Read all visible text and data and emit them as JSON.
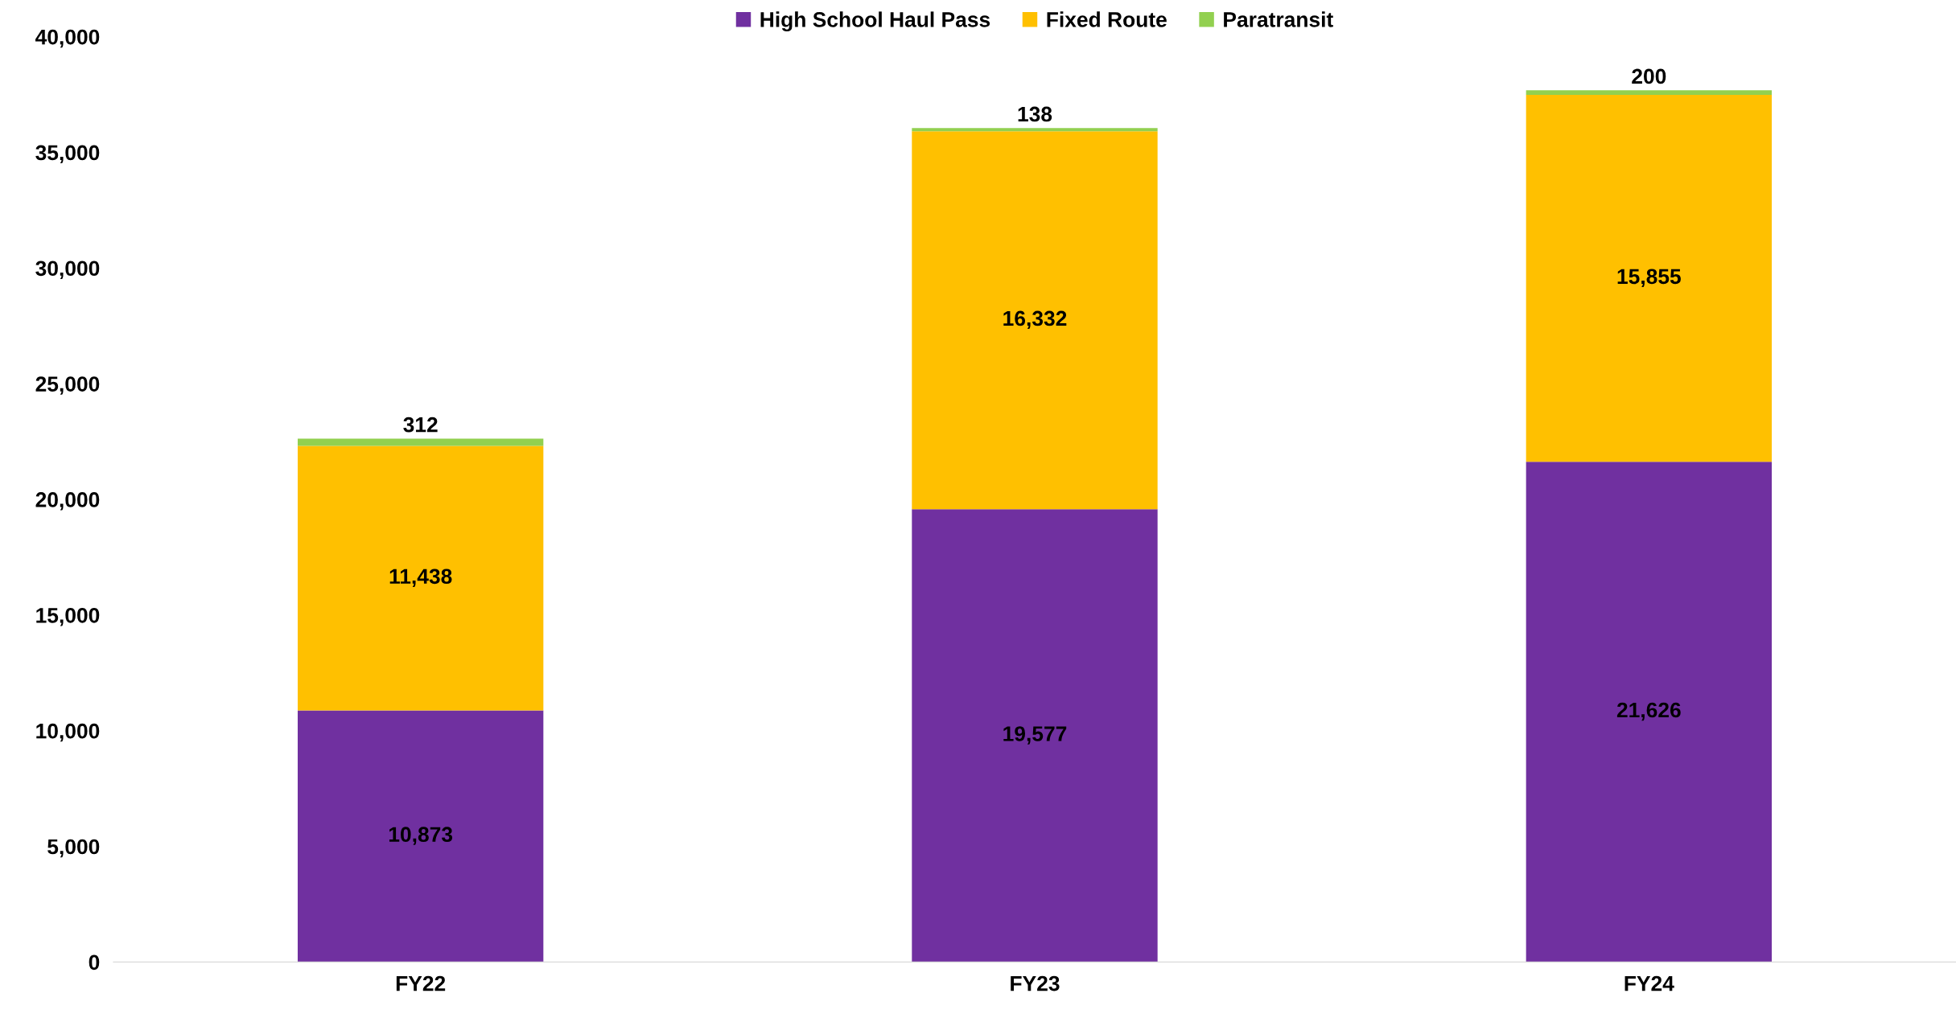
{
  "chart_data": {
    "type": "bar",
    "stacked": true,
    "categories": [
      "FY22",
      "FY23",
      "FY24"
    ],
    "series": [
      {
        "name": "High School Haul Pass",
        "color": "#7030a0",
        "values": [
          10873,
          19577,
          21626
        ],
        "value_labels": [
          "10,873",
          "19,577",
          "21,626"
        ]
      },
      {
        "name": "Fixed Route",
        "color": "#ffc000",
        "values": [
          11438,
          16332,
          15855
        ],
        "value_labels": [
          "11,438",
          "16,332",
          "15,855"
        ]
      },
      {
        "name": "Paratransit",
        "color": "#92d050",
        "values": [
          312,
          138,
          200
        ],
        "value_labels": [
          "312",
          "138",
          "200"
        ]
      }
    ],
    "ylim": [
      0,
      40000
    ],
    "yticks": [
      0,
      {
        "value": 5000,
        "label": "5,000"
      },
      {
        "value": 10000,
        "label": "10,000"
      },
      {
        "value": 15000,
        "label": "15,000"
      },
      {
        "value": 20000,
        "label": "20,000"
      },
      {
        "value": 25000,
        "label": "25,000"
      },
      {
        "value": 30000,
        "label": "30,000"
      },
      {
        "value": 35000,
        "label": "35,000"
      },
      {
        "value": 40000,
        "label": "40,000"
      }
    ],
    "legend": "top",
    "grid": false
  }
}
